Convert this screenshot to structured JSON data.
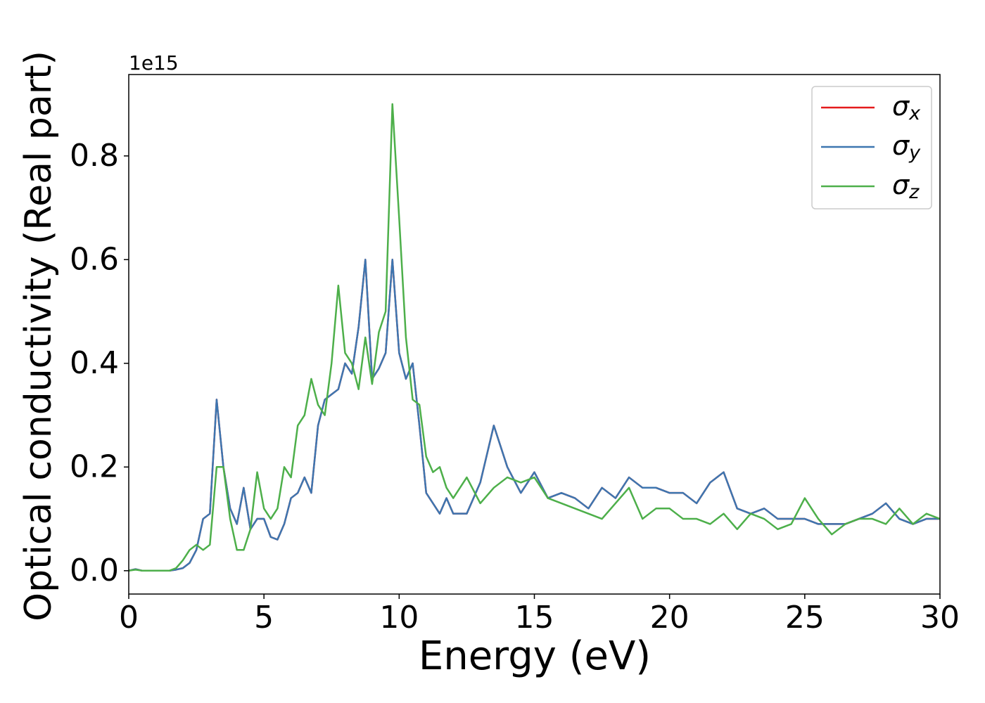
{
  "chart_data": {
    "type": "line",
    "xlabel": "Energy (eV)",
    "ylabel": "Optical conductivity (Real part)",
    "y_offset_label": "1e15",
    "x": [
      0,
      0.25,
      0.5,
      0.75,
      1,
      1.25,
      1.5,
      1.75,
      2,
      2.25,
      2.5,
      2.75,
      3,
      3.25,
      3.5,
      3.75,
      4,
      4.25,
      4.5,
      4.75,
      5,
      5.25,
      5.5,
      5.75,
      6,
      6.25,
      6.5,
      6.75,
      7,
      7.25,
      7.5,
      7.75,
      8,
      8.25,
      8.5,
      8.75,
      9,
      9.25,
      9.5,
      9.75,
      10,
      10.25,
      10.5,
      10.75,
      11,
      11.25,
      11.5,
      11.75,
      12,
      12.5,
      13,
      13.5,
      14,
      14.5,
      15,
      15.5,
      16,
      16.5,
      17,
      17.5,
      18,
      18.5,
      19,
      19.5,
      20,
      20.5,
      21,
      21.5,
      22,
      22.5,
      23,
      23.5,
      24,
      24.5,
      25,
      25.5,
      26,
      26.5,
      27,
      27.5,
      28,
      28.5,
      29,
      29.5,
      30
    ],
    "series": [
      {
        "name": "σx",
        "color": "#e41a1c",
        "values": [
          0,
          0.003,
          0,
          0,
          0,
          0,
          0,
          0.002,
          0.005,
          0.015,
          0.04,
          0.1,
          0.11,
          0.33,
          0.2,
          0.12,
          0.09,
          0.16,
          0.08,
          0.1,
          0.1,
          0.065,
          0.06,
          0.09,
          0.14,
          0.15,
          0.18,
          0.15,
          0.28,
          0.33,
          0.34,
          0.35,
          0.4,
          0.38,
          0.47,
          0.6,
          0.37,
          0.39,
          0.42,
          0.6,
          0.42,
          0.37,
          0.4,
          0.28,
          0.15,
          0.13,
          0.11,
          0.14,
          0.11,
          0.11,
          0.17,
          0.28,
          0.2,
          0.15,
          0.19,
          0.14,
          0.15,
          0.14,
          0.12,
          0.16,
          0.14,
          0.18,
          0.16,
          0.16,
          0.15,
          0.15,
          0.13,
          0.17,
          0.19,
          0.12,
          0.11,
          0.12,
          0.1,
          0.1,
          0.1,
          0.09,
          0.09,
          0.09,
          0.1,
          0.11,
          0.13,
          0.1,
          0.09,
          0.1,
          0.1
        ]
      },
      {
        "name": "σy",
        "color": "#3d76b0",
        "values": [
          0,
          0.003,
          0,
          0,
          0,
          0,
          0,
          0.002,
          0.005,
          0.015,
          0.04,
          0.1,
          0.11,
          0.33,
          0.2,
          0.12,
          0.09,
          0.16,
          0.08,
          0.1,
          0.1,
          0.065,
          0.06,
          0.09,
          0.14,
          0.15,
          0.18,
          0.15,
          0.28,
          0.33,
          0.34,
          0.35,
          0.4,
          0.38,
          0.47,
          0.6,
          0.37,
          0.39,
          0.42,
          0.6,
          0.42,
          0.37,
          0.4,
          0.28,
          0.15,
          0.13,
          0.11,
          0.14,
          0.11,
          0.11,
          0.17,
          0.28,
          0.2,
          0.15,
          0.19,
          0.14,
          0.15,
          0.14,
          0.12,
          0.16,
          0.14,
          0.18,
          0.16,
          0.16,
          0.15,
          0.15,
          0.13,
          0.17,
          0.19,
          0.12,
          0.11,
          0.12,
          0.1,
          0.1,
          0.1,
          0.09,
          0.09,
          0.09,
          0.1,
          0.11,
          0.13,
          0.1,
          0.09,
          0.1,
          0.1
        ]
      },
      {
        "name": "σz",
        "color": "#4daf4a",
        "values": [
          0,
          0.002,
          0,
          0,
          0,
          0,
          0,
          0.005,
          0.02,
          0.04,
          0.05,
          0.04,
          0.05,
          0.2,
          0.2,
          0.1,
          0.04,
          0.04,
          0.08,
          0.19,
          0.12,
          0.1,
          0.12,
          0.2,
          0.18,
          0.28,
          0.3,
          0.37,
          0.32,
          0.3,
          0.4,
          0.55,
          0.42,
          0.4,
          0.35,
          0.45,
          0.36,
          0.46,
          0.5,
          0.9,
          0.68,
          0.45,
          0.33,
          0.32,
          0.22,
          0.19,
          0.2,
          0.16,
          0.14,
          0.18,
          0.13,
          0.16,
          0.18,
          0.17,
          0.18,
          0.14,
          0.13,
          0.12,
          0.11,
          0.1,
          0.13,
          0.16,
          0.1,
          0.12,
          0.12,
          0.1,
          0.1,
          0.09,
          0.11,
          0.08,
          0.11,
          0.1,
          0.08,
          0.09,
          0.14,
          0.1,
          0.07,
          0.09,
          0.1,
          0.1,
          0.09,
          0.12,
          0.09,
          0.11,
          0.1
        ]
      }
    ],
    "xlim": [
      0,
      30
    ],
    "xticks": [
      0,
      5,
      10,
      15,
      20,
      25,
      30
    ],
    "ylim": [
      -0.045,
      0.957
    ],
    "yticks": [
      {
        "value": 0,
        "label": "0.0"
      },
      0.2,
      0.4,
      0.6,
      0.8
    ],
    "legend": "upper right",
    "grid": false
  }
}
